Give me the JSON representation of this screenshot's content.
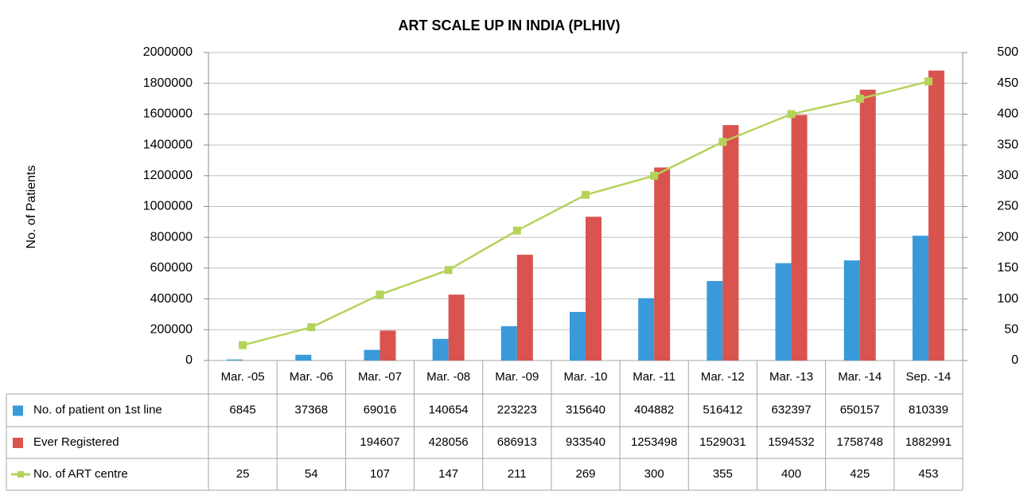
{
  "chart_data": {
    "type": "bar",
    "title": "ART SCALE UP IN INDIA (PLHIV)",
    "ylabel": "No. of Patients",
    "categories": [
      "Mar. -05",
      "Mar. -06",
      "Mar. -07",
      "Mar. -08",
      "Mar. -09",
      "Mar. -10",
      "Mar. -11",
      "Mar. -12",
      "Mar. -13",
      "Mar. -14",
      "Sep. -14"
    ],
    "series": [
      {
        "name": "No. of patient on 1st line",
        "type": "bar",
        "color": "#3a9ad9",
        "values": [
          6845,
          37368,
          69016,
          140654,
          223223,
          315640,
          404882,
          516412,
          632397,
          650157,
          810339
        ]
      },
      {
        "name": "Ever Registered",
        "type": "bar",
        "color": "#d9534f",
        "values": [
          null,
          null,
          194607,
          428056,
          686913,
          933540,
          1253498,
          1529031,
          1594532,
          1758748,
          1882991
        ]
      },
      {
        "name": "No. of ART centre",
        "type": "line",
        "axis": "y2",
        "color": "#b5d35a",
        "values": [
          25,
          54,
          107,
          147,
          211,
          269,
          300,
          355,
          400,
          425,
          453
        ]
      }
    ],
    "ylim": [
      0,
      2000000
    ],
    "yticks": [
      0,
      200000,
      400000,
      600000,
      800000,
      1000000,
      1200000,
      1400000,
      1600000,
      1800000,
      2000000
    ],
    "y2lim": [
      0,
      500
    ],
    "y2ticks": [
      0,
      50,
      100,
      150,
      200,
      250,
      300,
      350,
      400,
      450,
      500
    ],
    "grid": true
  }
}
